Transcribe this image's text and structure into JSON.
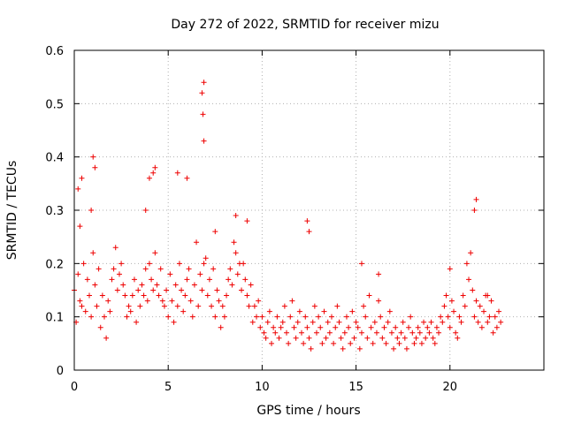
{
  "chart_data": {
    "type": "scatter",
    "title": "Day 272 of 2022, SRMTID for receiver mizu",
    "xlabel": "GPS time / hours",
    "ylabel": "SRMTID / TECUs",
    "xlim": [
      0,
      25
    ],
    "ylim": [
      0,
      0.6
    ],
    "xticks": [
      0,
      5,
      10,
      15,
      20
    ],
    "xtick_labels": [
      "0",
      "5",
      "10",
      "15",
      "20"
    ],
    "yticks": [
      0,
      0.1,
      0.2,
      0.3,
      0.4,
      0.5,
      0.6
    ],
    "ytick_labels": [
      "0",
      "0.1",
      "0.2",
      "0.3",
      "0.4",
      "0.5",
      "0.6"
    ],
    "grid": true,
    "marker": "plus",
    "color": "#ee0000",
    "series": [
      {
        "name": "SRMTID",
        "x": [
          0.0,
          0.1,
          0.2,
          0.3,
          0.4,
          0.5,
          0.6,
          0.7,
          0.8,
          0.9,
          1.0,
          1.1,
          1.2,
          1.3,
          1.4,
          1.5,
          1.6,
          1.7,
          1.8,
          1.9,
          2.0,
          2.1,
          2.2,
          2.3,
          2.4,
          2.5,
          2.6,
          2.7,
          2.8,
          2.9,
          3.0,
          3.1,
          3.2,
          3.3,
          3.4,
          3.5,
          3.6,
          3.7,
          3.8,
          3.9,
          4.0,
          4.1,
          4.2,
          4.3,
          4.4,
          4.5,
          4.6,
          4.7,
          4.8,
          4.9,
          5.0,
          5.1,
          5.2,
          5.3,
          5.4,
          5.5,
          5.6,
          5.7,
          5.8,
          5.9,
          6.0,
          6.1,
          6.2,
          6.3,
          6.4,
          6.5,
          6.6,
          6.7,
          6.8,
          6.9,
          7.0,
          7.1,
          7.2,
          7.3,
          7.4,
          7.5,
          7.6,
          7.7,
          7.8,
          7.9,
          8.0,
          8.1,
          8.2,
          8.3,
          8.4,
          8.5,
          8.6,
          8.7,
          8.8,
          8.9,
          9.0,
          9.1,
          9.2,
          9.3,
          9.4,
          9.5,
          9.6,
          9.7,
          9.8,
          9.9,
          10.0,
          10.1,
          10.2,
          10.3,
          10.4,
          10.5,
          10.6,
          10.7,
          10.8,
          10.9,
          11.0,
          11.1,
          11.2,
          11.3,
          11.4,
          11.5,
          11.6,
          11.7,
          11.8,
          11.9,
          12.0,
          12.1,
          12.2,
          12.3,
          12.4,
          12.5,
          12.6,
          12.7,
          12.8,
          12.9,
          13.0,
          13.1,
          13.2,
          13.3,
          13.4,
          13.5,
          13.6,
          13.7,
          13.8,
          13.9,
          14.0,
          14.1,
          14.2,
          14.3,
          14.4,
          14.5,
          14.6,
          14.7,
          14.8,
          14.9,
          15.0,
          15.1,
          15.2,
          15.3,
          15.4,
          15.5,
          15.6,
          15.7,
          15.8,
          15.9,
          16.0,
          16.1,
          16.2,
          16.3,
          16.4,
          16.5,
          16.6,
          16.7,
          16.8,
          16.9,
          17.0,
          17.1,
          17.2,
          17.3,
          17.4,
          17.5,
          17.6,
          17.7,
          17.8,
          17.9,
          18.0,
          18.1,
          18.2,
          18.3,
          18.4,
          18.5,
          18.6,
          18.7,
          18.8,
          18.9,
          19.0,
          19.1,
          19.2,
          19.3,
          19.4,
          19.5,
          19.6,
          19.7,
          19.8,
          19.9,
          20.0,
          20.1,
          20.2,
          20.3,
          20.4,
          20.5,
          20.6,
          20.7,
          20.8,
          20.9,
          21.0,
          21.1,
          21.2,
          21.3,
          21.4,
          21.5,
          21.6,
          21.7,
          21.8,
          21.9,
          22.0,
          22.1,
          22.2,
          22.3,
          22.4,
          22.5,
          22.6,
          22.7,
          0.2,
          0.4,
          0.9,
          1.1,
          1.0,
          4.2,
          4.0,
          6.8,
          6.9,
          6.85,
          6.9,
          5.5,
          6.0,
          9.2,
          12.4,
          15.3,
          21.3,
          21.4,
          0.3,
          3.8,
          4.3,
          7.5,
          8.6,
          12.5,
          16.2,
          20.0,
          22.0
        ],
        "y": [
          0.15,
          0.09,
          0.18,
          0.13,
          0.12,
          0.2,
          0.11,
          0.17,
          0.14,
          0.1,
          0.22,
          0.16,
          0.12,
          0.19,
          0.08,
          0.14,
          0.1,
          0.06,
          0.13,
          0.11,
          0.17,
          0.19,
          0.23,
          0.15,
          0.18,
          0.2,
          0.16,
          0.14,
          0.1,
          0.12,
          0.11,
          0.14,
          0.17,
          0.09,
          0.15,
          0.12,
          0.16,
          0.14,
          0.19,
          0.13,
          0.2,
          0.17,
          0.15,
          0.22,
          0.16,
          0.14,
          0.19,
          0.13,
          0.12,
          0.15,
          0.1,
          0.18,
          0.13,
          0.09,
          0.16,
          0.12,
          0.2,
          0.15,
          0.11,
          0.14,
          0.17,
          0.19,
          0.13,
          0.1,
          0.16,
          0.24,
          0.12,
          0.18,
          0.15,
          0.2,
          0.21,
          0.14,
          0.17,
          0.12,
          0.19,
          0.1,
          0.15,
          0.13,
          0.08,
          0.12,
          0.1,
          0.14,
          0.17,
          0.19,
          0.16,
          0.24,
          0.22,
          0.18,
          0.2,
          0.15,
          0.2,
          0.17,
          0.14,
          0.12,
          0.16,
          0.09,
          0.12,
          0.1,
          0.13,
          0.08,
          0.1,
          0.07,
          0.06,
          0.09,
          0.11,
          0.05,
          0.08,
          0.07,
          0.1,
          0.06,
          0.08,
          0.09,
          0.12,
          0.07,
          0.05,
          0.1,
          0.13,
          0.08,
          0.06,
          0.09,
          0.11,
          0.07,
          0.05,
          0.1,
          0.08,
          0.06,
          0.04,
          0.09,
          0.12,
          0.07,
          0.1,
          0.08,
          0.05,
          0.11,
          0.06,
          0.09,
          0.07,
          0.1,
          0.05,
          0.08,
          0.12,
          0.09,
          0.06,
          0.04,
          0.07,
          0.1,
          0.08,
          0.05,
          0.11,
          0.06,
          0.09,
          0.08,
          0.04,
          0.07,
          0.12,
          0.1,
          0.06,
          0.14,
          0.08,
          0.05,
          0.09,
          0.07,
          0.13,
          0.1,
          0.06,
          0.08,
          0.05,
          0.09,
          0.11,
          0.07,
          0.04,
          0.08,
          0.06,
          0.05,
          0.07,
          0.09,
          0.06,
          0.04,
          0.08,
          0.1,
          0.07,
          0.05,
          0.06,
          0.08,
          0.07,
          0.05,
          0.09,
          0.06,
          0.08,
          0.07,
          0.09,
          0.06,
          0.05,
          0.08,
          0.07,
          0.1,
          0.09,
          0.12,
          0.14,
          0.1,
          0.08,
          0.13,
          0.11,
          0.07,
          0.06,
          0.1,
          0.09,
          0.14,
          0.12,
          0.2,
          0.17,
          0.22,
          0.15,
          0.1,
          0.13,
          0.09,
          0.12,
          0.08,
          0.11,
          0.14,
          0.09,
          0.1,
          0.13,
          0.07,
          0.1,
          0.08,
          0.11,
          0.09,
          0.34,
          0.36,
          0.3,
          0.38,
          0.4,
          0.37,
          0.36,
          0.52,
          0.54,
          0.48,
          0.43,
          0.37,
          0.36,
          0.28,
          0.28,
          0.2,
          0.3,
          0.32,
          0.27,
          0.3,
          0.38,
          0.26,
          0.29,
          0.26,
          0.18,
          0.19,
          0.14
        ]
      }
    ]
  }
}
